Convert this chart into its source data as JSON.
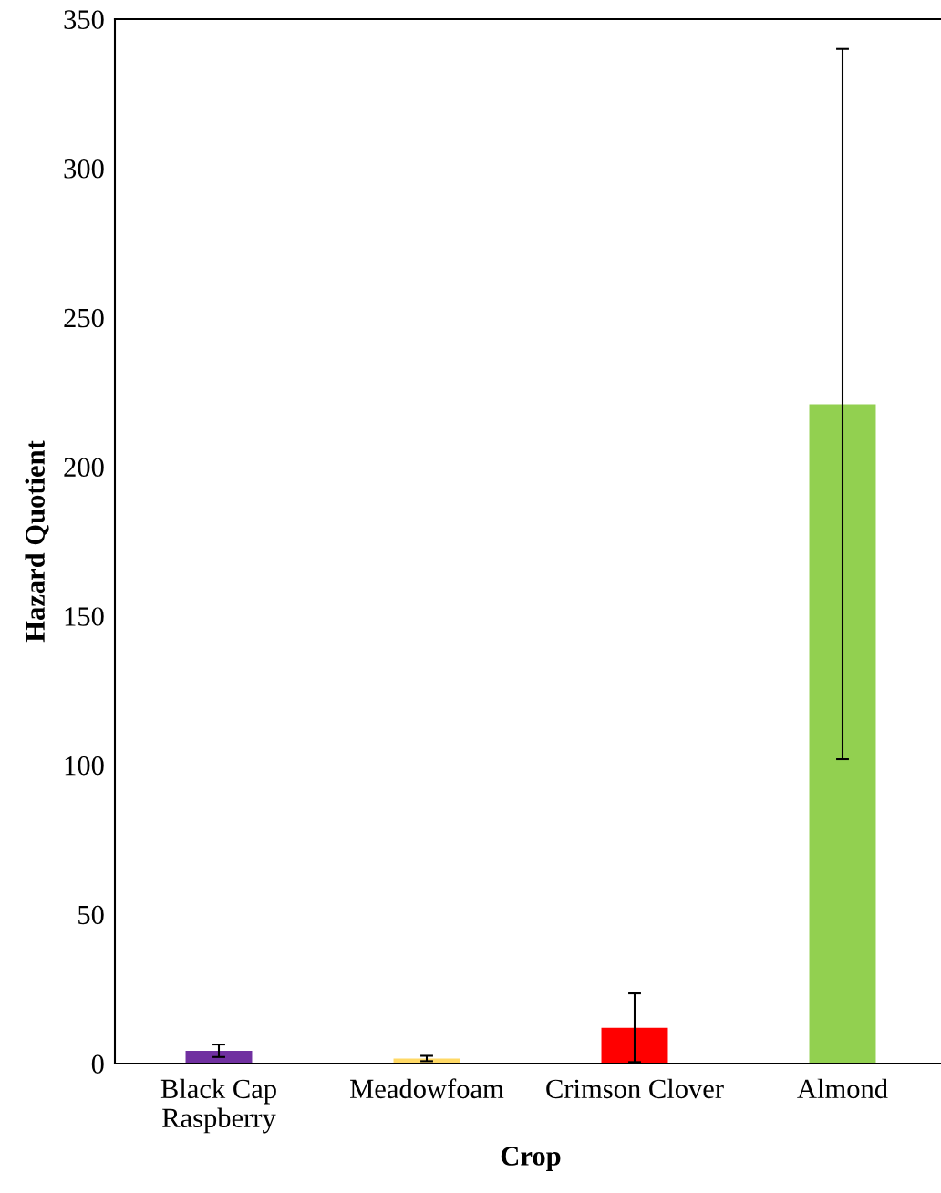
{
  "chart_data": {
    "type": "bar",
    "xlabel": "Crop",
    "ylabel": "Hazard Quotient",
    "categories": [
      "Black Cap\nRaspberry",
      "Meadowfoam",
      "Crimson Clover",
      "Almond"
    ],
    "values": [
      4.3,
      1.7,
      12.0,
      221
    ],
    "colors": [
      "#7030a0",
      "#ffd966",
      "#ff0000",
      "#92d050"
    ],
    "errors": [
      2.1,
      0.9,
      11.5,
      119
    ],
    "ylim": [
      0,
      350
    ],
    "yticks": [
      0,
      50,
      100,
      150,
      200,
      250,
      300,
      350
    ],
    "grid": false,
    "legend": false
  }
}
